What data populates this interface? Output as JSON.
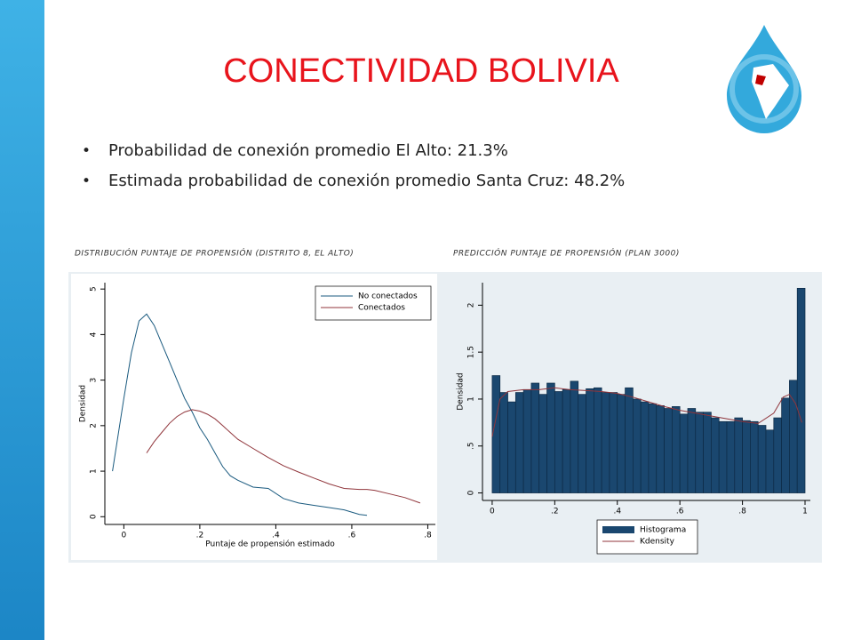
{
  "title": "CONECTIVIDAD BOLIVIA",
  "bullets": [
    "Probabilidad de conexión promedio El Alto: 21.3%",
    "Estimada probabilidad de conexión promedio Santa Cruz: 48.2%"
  ],
  "chart_data": [
    {
      "type": "line",
      "title": "DISTRIBUCIÓN  PUNTAJE DE PROPENSIÓN (DISTRITO 8, EL ALTO)",
      "x_label": "Puntaje de propensión estimado",
      "y_label": "Densidad",
      "x": [
        -0.03,
        0,
        0.02,
        0.04,
        0.06,
        0.08,
        0.1,
        0.12,
        0.14,
        0.16,
        0.18,
        0.2,
        0.22,
        0.24,
        0.26,
        0.28,
        0.3,
        0.34,
        0.38,
        0.42,
        0.46,
        0.5,
        0.54,
        0.58,
        0.62,
        0.64,
        0.66,
        0.7,
        0.74,
        0.78
      ],
      "series": [
        {
          "name": "No conectados",
          "color": "#1a5a7f",
          "values": [
            1.0,
            2.6,
            3.6,
            4.3,
            4.45,
            4.2,
            3.8,
            3.4,
            3.0,
            2.6,
            2.3,
            1.95,
            1.7,
            1.4,
            1.1,
            0.9,
            0.8,
            0.65,
            0.62,
            0.4,
            0.3,
            0.25,
            0.2,
            0.15,
            0.05,
            0.03,
            null,
            null,
            null,
            null
          ]
        },
        {
          "name": "Conectados",
          "color": "#90353b",
          "values": [
            null,
            null,
            null,
            null,
            1.4,
            1.65,
            1.85,
            2.05,
            2.2,
            2.3,
            2.35,
            2.32,
            2.25,
            2.15,
            2.0,
            1.85,
            1.7,
            1.5,
            1.3,
            1.12,
            0.98,
            0.85,
            0.72,
            0.62,
            0.6,
            0.6,
            0.58,
            0.5,
            0.42,
            0.3
          ]
        }
      ],
      "xlim": [
        -0.05,
        0.82
      ],
      "xticks": [
        0,
        {
          "value": 0.2,
          "label": ".2"
        },
        {
          "value": 0.4,
          "label": ".4"
        },
        {
          "value": 0.6,
          "label": ".6"
        },
        {
          "value": 0.8,
          "label": ".8"
        }
      ],
      "ylim": [
        -0.17,
        5.14
      ],
      "yticks": [
        0,
        1,
        2,
        3,
        4,
        5
      ],
      "legend": "top-right"
    },
    {
      "type": "histogram",
      "title": "PREDICCIÓN  PUNTAJE DE PROPENSIÓN (PLAN 3000)",
      "y_label": "Densidad",
      "bins": [
        0,
        0.025,
        0.05,
        0.075,
        0.1,
        0.125,
        0.15,
        0.175,
        0.2,
        0.225,
        0.25,
        0.275,
        0.3,
        0.325,
        0.35,
        0.375,
        0.4,
        0.425,
        0.45,
        0.475,
        0.5,
        0.525,
        0.55,
        0.575,
        0.6,
        0.625,
        0.65,
        0.675,
        0.7,
        0.725,
        0.75,
        0.775,
        0.8,
        0.825,
        0.85,
        0.875,
        0.9,
        0.925,
        0.95,
        0.975,
        1
      ],
      "series": [
        {
          "name": "Histograma",
          "color": "#1a476f",
          "values": [
            1.25,
            1.07,
            0.97,
            1.07,
            1.1,
            1.17,
            1.05,
            1.17,
            1.08,
            1.1,
            1.19,
            1.05,
            1.11,
            1.12,
            1.07,
            1.07,
            1.05,
            1.12,
            1.0,
            0.97,
            0.95,
            0.93,
            0.9,
            0.92,
            0.84,
            0.9,
            0.86,
            0.86,
            0.8,
            0.76,
            0.76,
            0.8,
            0.77,
            0.76,
            0.72,
            0.67,
            0.8,
            1.01,
            1.2,
            2.18
          ]
        },
        {
          "name": "Kdensity",
          "color": "#90353b",
          "x": [
            0,
            0.025,
            0.05,
            0.1,
            0.15,
            0.2,
            0.25,
            0.3,
            0.35,
            0.4,
            0.45,
            0.5,
            0.55,
            0.6,
            0.65,
            0.7,
            0.75,
            0.8,
            0.85,
            0.9,
            0.93,
            0.95,
            0.97,
            0.99
          ],
          "values": [
            0.6,
            1.0,
            1.08,
            1.1,
            1.1,
            1.12,
            1.1,
            1.09,
            1.08,
            1.06,
            1.02,
            0.97,
            0.92,
            0.88,
            0.85,
            0.82,
            0.79,
            0.76,
            0.74,
            0.85,
            1.02,
            1.05,
            0.95,
            0.75
          ]
        }
      ],
      "xlim": [
        -0.031,
        1.017
      ],
      "xticks": [
        0,
        {
          "value": 0.2,
          "label": ".2"
        },
        {
          "value": 0.4,
          "label": ".4"
        },
        {
          "value": 0.6,
          "label": ".6"
        },
        {
          "value": 0.8,
          "label": ".8"
        },
        1
      ],
      "ylim": [
        -0.08,
        2.24
      ],
      "yticks": [
        0,
        {
          "value": 0.5,
          "label": ".5"
        },
        1,
        1.5,
        2
      ],
      "legend": "bottom"
    }
  ]
}
